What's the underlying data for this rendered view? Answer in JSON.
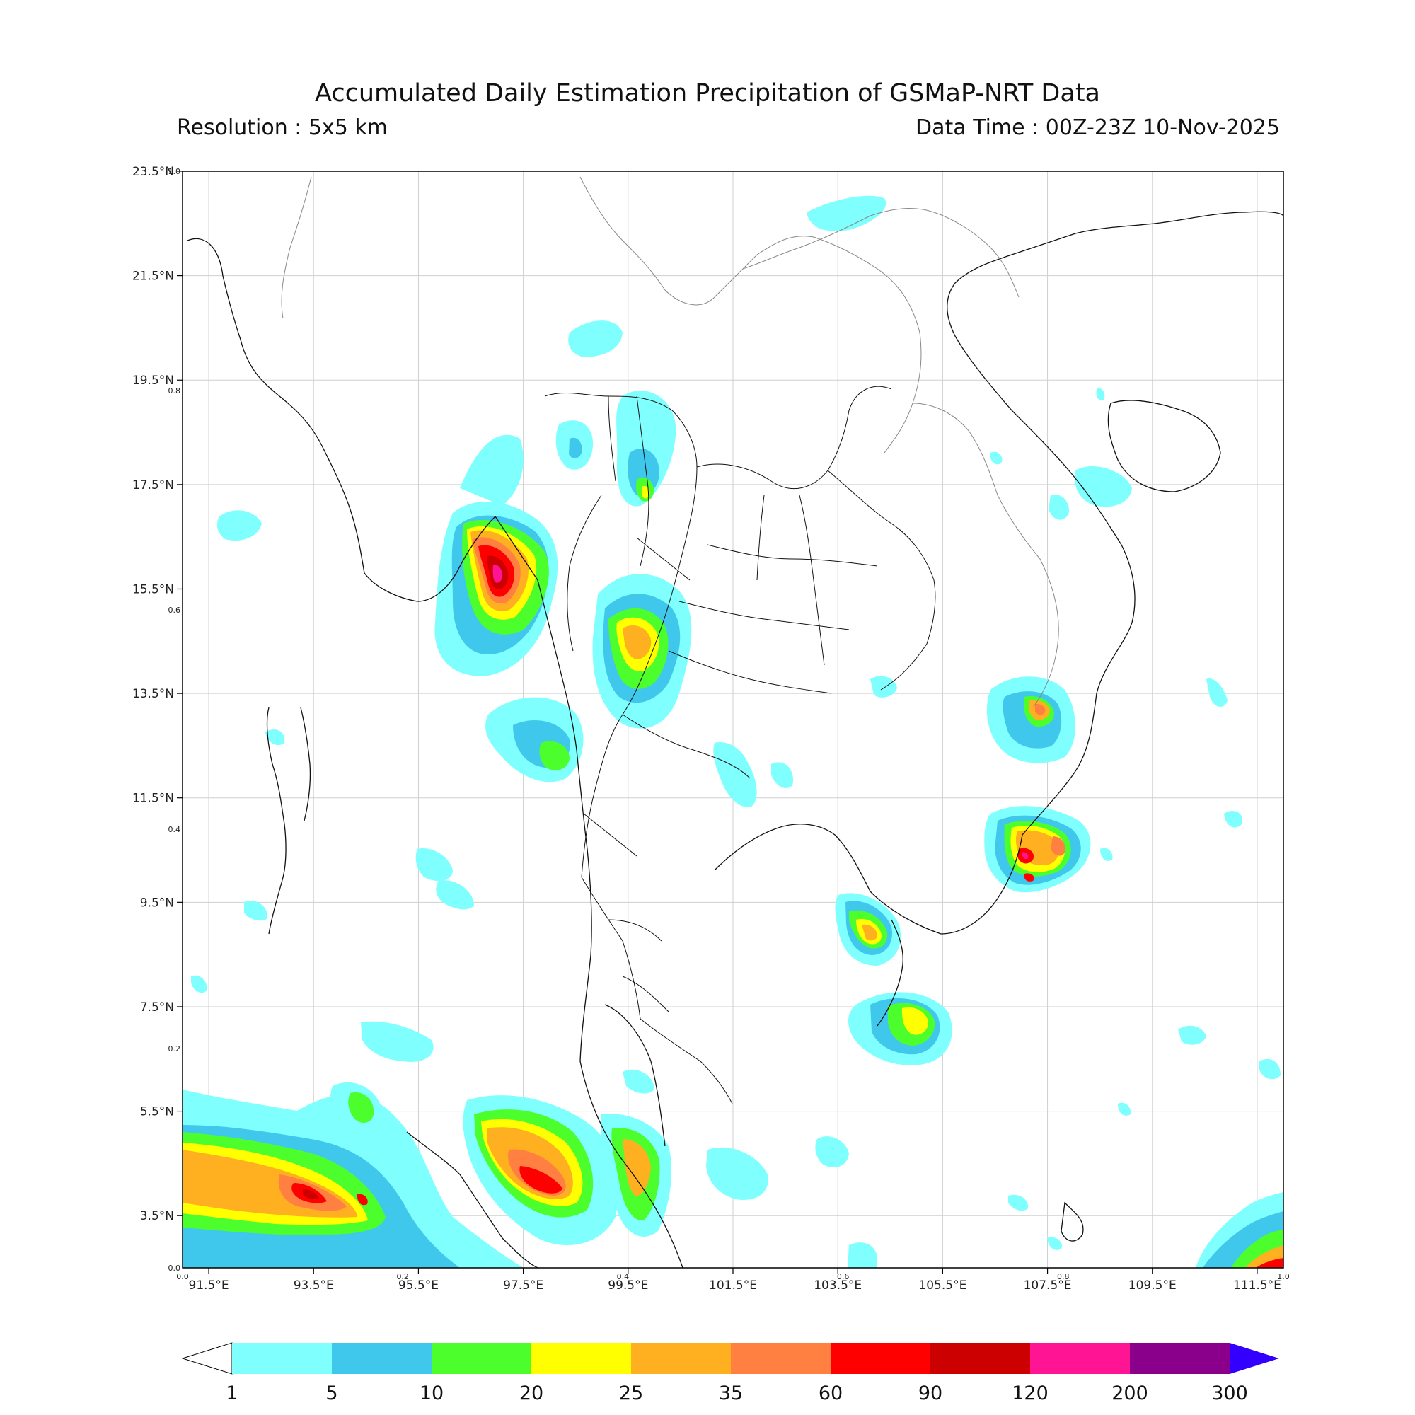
{
  "header": {
    "title": "Accumulated Daily Estimation Precipitation of GSMaP-NRT Data",
    "resolution": "Resolution : 5x5 km",
    "data_time": "Data Time : 00Z-23Z 10-Nov-2025"
  },
  "map": {
    "lon_range": [
      91.0,
      112.0
    ],
    "lat_range": [
      2.5,
      23.5
    ],
    "lon_ticks": [
      "91.5°E",
      "93.5°E",
      "95.5°E",
      "97.5°E",
      "99.5°E",
      "101.5°E",
      "103.5°E",
      "105.5°E",
      "107.5°E",
      "109.5°E",
      "111.5°E"
    ],
    "lat_ticks": [
      "23.5°N",
      "21.5°N",
      "19.5°N",
      "17.5°N",
      "15.5°N",
      "13.5°N",
      "11.5°N",
      "9.5°N",
      "7.5°N",
      "5.5°N",
      "3.5°N"
    ],
    "frame_ticks_x": [
      "0.0",
      "0.2",
      "0.4",
      "0.6",
      "0.8",
      "1.0"
    ],
    "frame_ticks_y": [
      "0.0",
      "0.2",
      "0.4",
      "0.6",
      "0.8",
      "1.0"
    ],
    "grid": true
  },
  "colorbar": {
    "levels": [
      "1",
      "5",
      "10",
      "20",
      "25",
      "35",
      "60",
      "90",
      "120",
      "200",
      "300"
    ],
    "colors": [
      "#80ffff",
      "#40c8ec",
      "#4cff2c",
      "#ffff00",
      "#ffb020",
      "#ff8040",
      "#ff0000",
      "#cc0000",
      "#ff1493",
      "#8b008b"
    ],
    "over_color": "#3300ff",
    "under_color": "#ffffff"
  },
  "chart_data": {
    "type": "heatmap",
    "title": "Accumulated Daily Estimation Precipitation of GSMaP-NRT Data",
    "unit": "",
    "xlabel": "",
    "ylabel": "",
    "xlim": [
      91.0,
      112.0
    ],
    "ylim": [
      2.5,
      23.5
    ],
    "rain_cells": [
      {
        "lon": 96.8,
        "lat": 16.1,
        "peak_level": 9
      },
      {
        "lon": 98.7,
        "lat": 15.0,
        "peak_level": 5
      },
      {
        "lon": 93.5,
        "lat": 4.3,
        "peak_level": 7
      },
      {
        "lon": 91.8,
        "lat": 4.6,
        "peak_level": 5
      },
      {
        "lon": 97.4,
        "lat": 4.2,
        "peak_level": 7
      },
      {
        "lon": 107.1,
        "lat": 10.8,
        "peak_level": 8
      },
      {
        "lon": 107.3,
        "lat": 13.7,
        "peak_level": 5
      },
      {
        "lon": 104.0,
        "lat": 9.5,
        "peak_level": 5
      },
      {
        "lon": 104.8,
        "lat": 7.8,
        "peak_level": 4
      },
      {
        "lon": 111.5,
        "lat": 3.5,
        "peak_level": 6
      }
    ]
  }
}
